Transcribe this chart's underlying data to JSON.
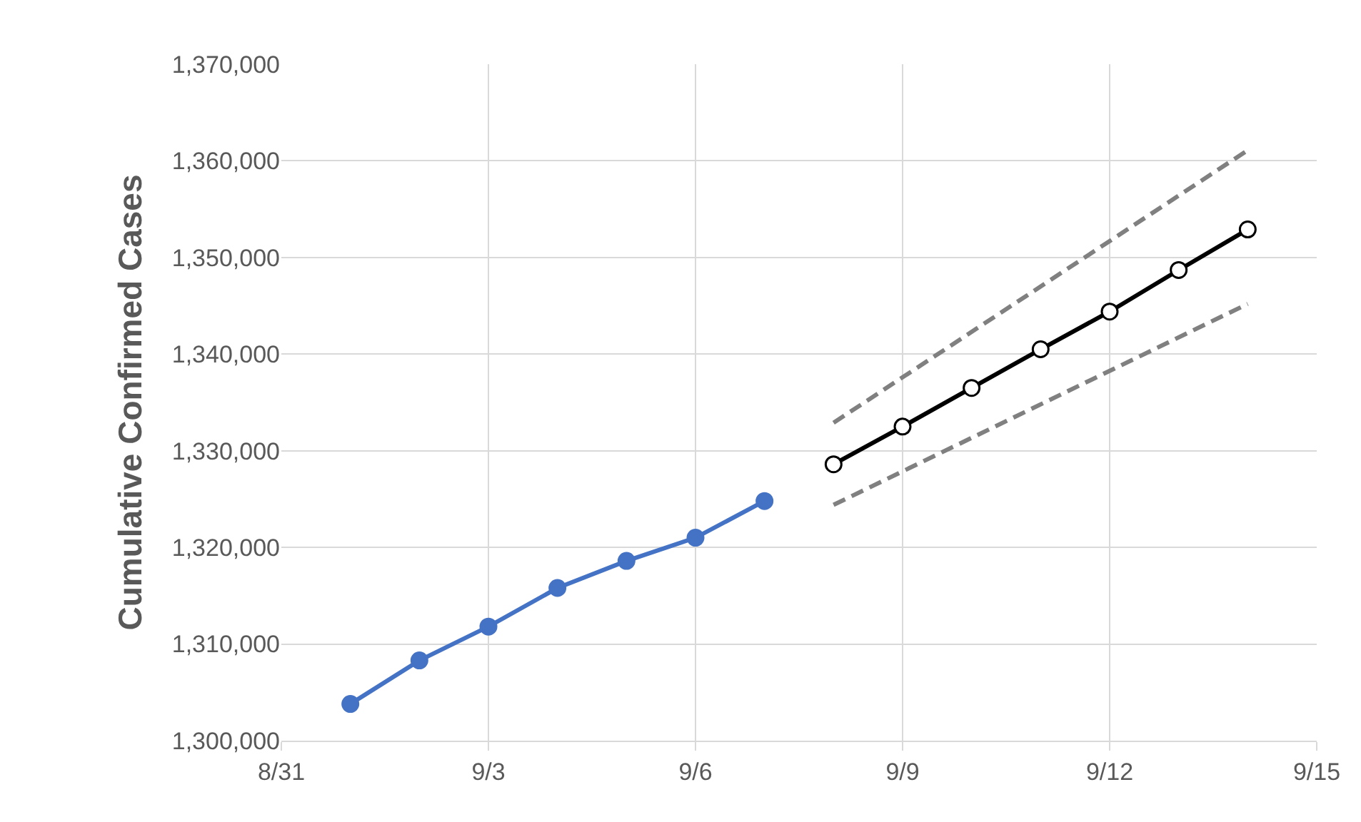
{
  "chart_data": {
    "type": "line",
    "ylabel": "Cumulative Confirmed Cases",
    "grid": true,
    "marker": "circle",
    "xlim": [
      "--08-31",
      "--09-15"
    ],
    "xticks": [
      {
        "value": "--08-31",
        "label": "8/31"
      },
      {
        "value": "--09-03",
        "label": "9/3"
      },
      {
        "value": "--09-06",
        "label": "9/6"
      },
      {
        "value": "--09-09",
        "label": "9/9"
      },
      {
        "value": "--09-12",
        "label": "9/12"
      },
      {
        "value": "--09-15",
        "label": "9/15"
      }
    ],
    "ylim": [
      1300000,
      1370000
    ],
    "yticks": [
      {
        "value": 1300000,
        "label": "1,300,000"
      },
      {
        "value": 1310000,
        "label": "1,310,000"
      },
      {
        "value": 1320000,
        "label": "1,320,000"
      },
      {
        "value": 1330000,
        "label": "1,330,000"
      },
      {
        "value": 1340000,
        "label": "1,340,000"
      },
      {
        "value": 1350000,
        "label": "1,350,000"
      },
      {
        "value": 1360000,
        "label": "1,360,000"
      },
      {
        "value": 1370000,
        "label": "1,370,000"
      }
    ],
    "series": [
      {
        "color": "#4472c4",
        "x": [
          "--09-01",
          "--09-02",
          "--09-03",
          "--09-04",
          "--09-05",
          "--09-06",
          "--09-07"
        ],
        "values": [
          1303800,
          1308300,
          1311800,
          1315800,
          1318600,
          1321000,
          1324800
        ]
      },
      {
        "color": "#000000",
        "x": [
          "--09-08",
          "--09-09",
          "--09-10",
          "--09-11",
          "--09-12",
          "--09-13",
          "--09-14"
        ],
        "values": [
          1328600,
          1332500,
          1336500,
          1340500,
          1344400,
          1348700,
          1352900
        ]
      },
      {
        "color": "#808080",
        "line_style": "dashed",
        "marker": "none",
        "x": [
          "--09-08",
          "--09-14"
        ],
        "values": [
          1332900,
          1361100
        ]
      },
      {
        "color": "#808080",
        "line_style": "dashed",
        "marker": "none",
        "x": [
          "--09-08",
          "--09-14"
        ],
        "values": [
          1324400,
          1345200
        ]
      }
    ]
  }
}
